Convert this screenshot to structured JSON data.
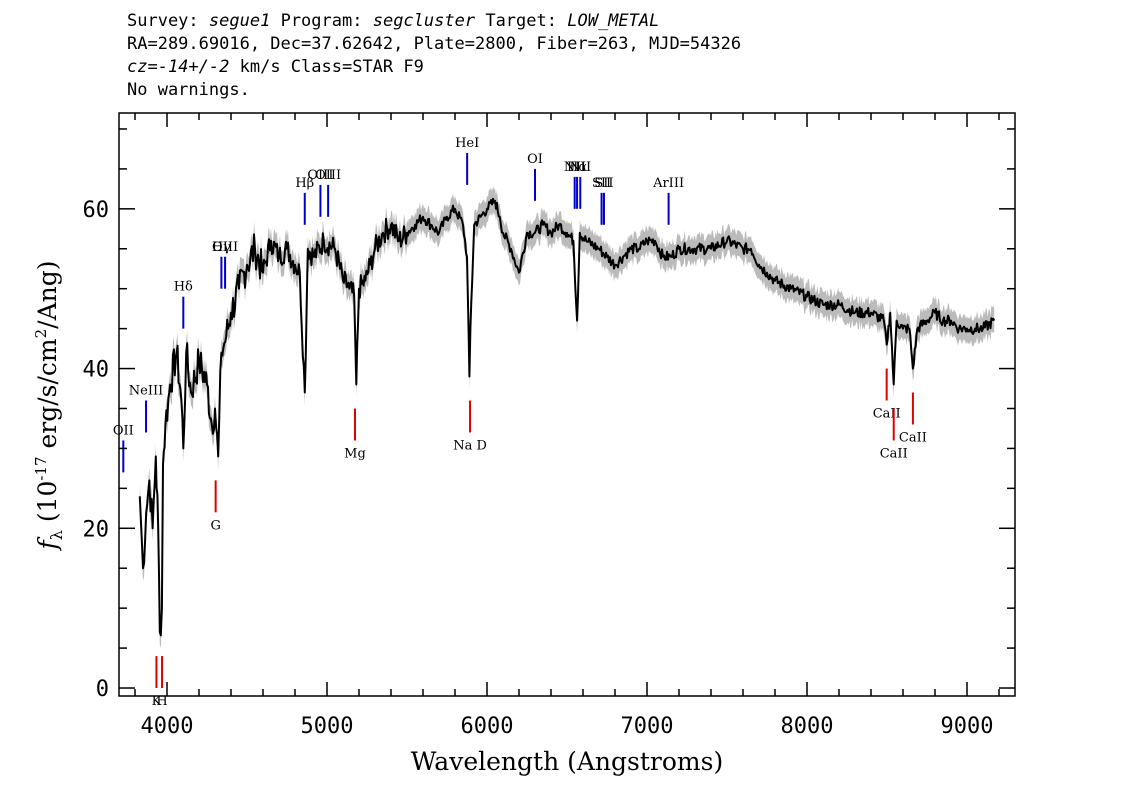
{
  "header": {
    "survey_label": "Survey:",
    "survey": "segue1",
    "program_label": "Program:",
    "program": "segcluster",
    "target_label": "Target:",
    "target": "LOW_METAL",
    "line2": "RA=289.69016, Dec=37.62642, Plate=2800, Fiber=263, MJD=54326",
    "cz_label": "cz=",
    "cz": "-14+/-2",
    "cz_unit_class": "km/s Class=STAR F9",
    "warnings": "No warnings."
  },
  "chart_data": {
    "type": "line",
    "xlabel": "Wavelength (Angstroms)",
    "ylabel": "f_λ (10^-17 erg/s/cm^2/Ang)",
    "ylabel_parts": {
      "f": "f",
      "sub": "λ",
      "pre": " (10",
      "exp1": "-17",
      "mid": " erg/s/cm",
      "exp2": "2",
      "post": "/Ang)"
    },
    "xlim": [
      3700,
      9300
    ],
    "ylim": [
      -1,
      72
    ],
    "x_major_ticks": [
      4000,
      5000,
      6000,
      7000,
      8000,
      9000
    ],
    "x_tick_labels": [
      "4000",
      "5000",
      "6000",
      "7000",
      "8000",
      "9000"
    ],
    "y_major_ticks": [
      0,
      20,
      40,
      60
    ],
    "y_tick_labels": [
      "0",
      "20",
      "40",
      "60"
    ],
    "series": [
      {
        "color": "#000000",
        "error_color": "#bbbbbb",
        "x": [
          3830,
          3850,
          3870,
          3890,
          3910,
          3930,
          3945,
          3955,
          3968,
          3975,
          3990,
          4020,
          4060,
          4090,
          4102,
          4120,
          4150,
          4200,
          4250,
          4280,
          4300,
          4320,
          4340,
          4370,
          4400,
          4450,
          4500,
          4550,
          4600,
          4650,
          4700,
          4750,
          4800,
          4830,
          4861,
          4880,
          4920,
          4980,
          5050,
          5100,
          5140,
          5170,
          5183,
          5200,
          5240,
          5270,
          5300,
          5350,
          5400,
          5450,
          5500,
          5550,
          5600,
          5650,
          5700,
          5750,
          5800,
          5850,
          5875,
          5890,
          5896,
          5920,
          5960,
          6000,
          6050,
          6080,
          6100,
          6150,
          6200,
          6250,
          6300,
          6350,
          6400,
          6450,
          6500,
          6540,
          6563,
          6580,
          6620,
          6700,
          6750,
          6800,
          6850,
          6900,
          6950,
          7000,
          7050,
          7100,
          7150,
          7200,
          7300,
          7400,
          7500,
          7600,
          7650,
          7700,
          7750,
          7800,
          7900,
          8000,
          8100,
          8200,
          8300,
          8400,
          8480,
          8498,
          8520,
          8542,
          8560,
          8600,
          8640,
          8662,
          8690,
          8750,
          8800,
          8850,
          8900,
          8950,
          9000,
          9050,
          9100,
          9170
        ],
        "y": [
          24,
          15,
          22,
          26,
          20,
          29,
          20,
          7,
          10,
          28,
          33,
          38,
          42,
          36,
          30,
          42,
          37,
          41,
          38,
          33,
          35,
          29,
          42,
          44,
          47,
          50,
          53,
          55,
          52,
          56,
          54,
          55,
          53,
          52,
          37,
          55,
          54,
          56,
          55,
          51,
          50,
          49,
          38,
          50,
          51,
          53,
          55,
          57,
          58,
          56,
          57,
          58,
          59,
          58,
          57,
          59,
          60,
          58,
          54,
          39,
          45,
          58,
          59,
          60,
          61,
          59,
          57,
          55,
          52,
          57,
          57,
          58,
          57,
          58,
          57,
          56,
          46,
          57,
          56,
          55,
          54,
          53,
          54,
          55,
          55,
          56,
          56,
          54,
          54,
          55,
          55,
          55,
          56,
          55,
          55,
          53,
          52,
          51,
          50,
          49,
          48,
          48,
          47,
          47,
          46,
          43,
          47,
          38,
          46,
          45,
          45,
          40,
          45,
          46,
          47,
          46,
          46,
          45,
          45,
          45,
          45,
          46
        ]
      }
    ],
    "emission_lines": [
      {
        "label": "OII",
        "x": 3727
      },
      {
        "label": "NeIII",
        "x": 3869
      },
      {
        "label": "Hδ",
        "x": 4102
      },
      {
        "label": "Hγ",
        "x": 4340
      },
      {
        "label": "OIII",
        "x": 4363
      },
      {
        "label": "Hβ",
        "x": 4861
      },
      {
        "label": "OIII",
        "x": 4959
      },
      {
        "label": "OIII",
        "x": 5007
      },
      {
        "label": "HeI",
        "x": 5876
      },
      {
        "label": "OI",
        "x": 6300
      },
      {
        "label": "NII",
        "x": 6548
      },
      {
        "label": "Hα",
        "x": 6563
      },
      {
        "label": "NII",
        "x": 6583
      },
      {
        "label": "SII",
        "x": 6716
      },
      {
        "label": "SII",
        "x": 6731
      },
      {
        "label": "ArIII",
        "x": 7135
      }
    ],
    "absorption_lines": [
      {
        "label": "K",
        "x": 3934
      },
      {
        "label": "H",
        "x": 3969
      },
      {
        "label": "G",
        "x": 4304
      },
      {
        "label": "Mg",
        "x": 5175
      },
      {
        "label": "Na D",
        "x": 5894
      },
      {
        "label": "CaII",
        "x": 8498
      },
      {
        "label": "CaII",
        "x": 8542
      },
      {
        "label": "CaII",
        "x": 8662
      }
    ],
    "colors": {
      "emission": "#0000cc",
      "absorption": "#dd0000",
      "spectrum": "#000000",
      "error": "#bbbbbb"
    }
  }
}
